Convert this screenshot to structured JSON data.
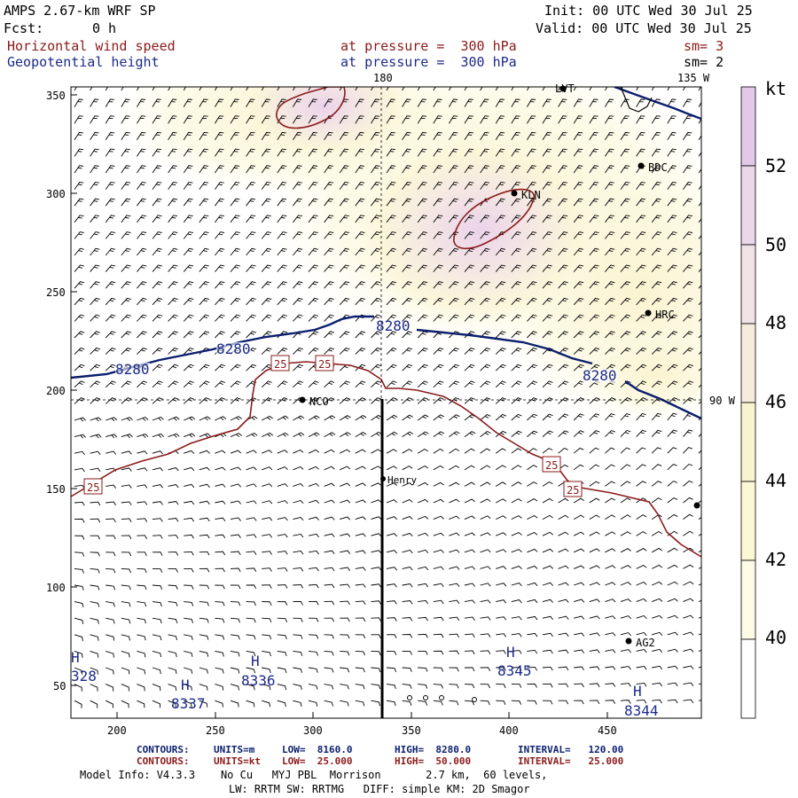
{
  "header": {
    "title": "AMPS 2.67-km WRF SP",
    "fcst_label": "Fcst:",
    "fcst_value": "0 h",
    "init": "Init: 00 UTC Wed 30 Jul 25",
    "valid": "Valid: 00 UTC Wed 30 Jul 25",
    "field1": "Horizontal wind speed",
    "field1_level": "at pressure =  300 hPa",
    "field1_sm": "sm= 3",
    "field2": "Geopotential height",
    "field2_level": "at pressure =  300 hPa",
    "field2_sm": "sm= 2"
  },
  "map": {
    "x_ticks": [
      "200",
      "250",
      "300",
      "350",
      "400",
      "450"
    ],
    "y_ticks": [
      "350",
      "300",
      "250",
      "200",
      "150",
      "100",
      "50"
    ],
    "lon_180": "180",
    "lon_135w": "135 W",
    "lon_90w": "90 W",
    "stations": [
      "LVT",
      "BDC",
      "KLN",
      "HRC",
      "NCO",
      "Henry",
      "AG2"
    ],
    "wind_contour_labels": [
      "25",
      "25",
      "25",
      "25",
      "25"
    ],
    "height_contour_labels": [
      "8280",
      "8280",
      "8280",
      "8280"
    ],
    "highs": [
      {
        "label": "H",
        "value": "328"
      },
      {
        "label": "H",
        "value": "8336"
      },
      {
        "label": "H",
        "value": "8337"
      },
      {
        "label": "H",
        "value": "8345"
      },
      {
        "label": "H",
        "value": "8344"
      }
    ]
  },
  "colorbar": {
    "unit": "kt",
    "levels": [
      "52",
      "50",
      "48",
      "46",
      "44",
      "42",
      "40"
    ],
    "colors": [
      "#e3c8ea",
      "#ebd6ea",
      "#f1e2e6",
      "#f7ecdc",
      "#faf3cf",
      "#fcf8d6",
      "#fdfbe6",
      "#ffffff"
    ]
  },
  "footer": {
    "c1_title": "CONTOURS:",
    "c1_units": "UNITS=m",
    "c1_low": "LOW=  8160.0",
    "c1_high": "HIGH=  8280.0",
    "c1_int": "INTERVAL=   120.00",
    "c2_title": "CONTOURS:",
    "c2_units": "UNITS=kt",
    "c2_low": "LOW=  25.000",
    "c2_high": "HIGH=  50.000",
    "c2_int": "INTERVAL=   25.000",
    "model1": "Model Info: V4.3.3    No Cu   MYJ PBL  Morrison       2.7 km,  60 levels,",
    "model2": "LW: RRTM SW: RRTMG   DIFF: simple KM: 2D Smagor"
  }
}
